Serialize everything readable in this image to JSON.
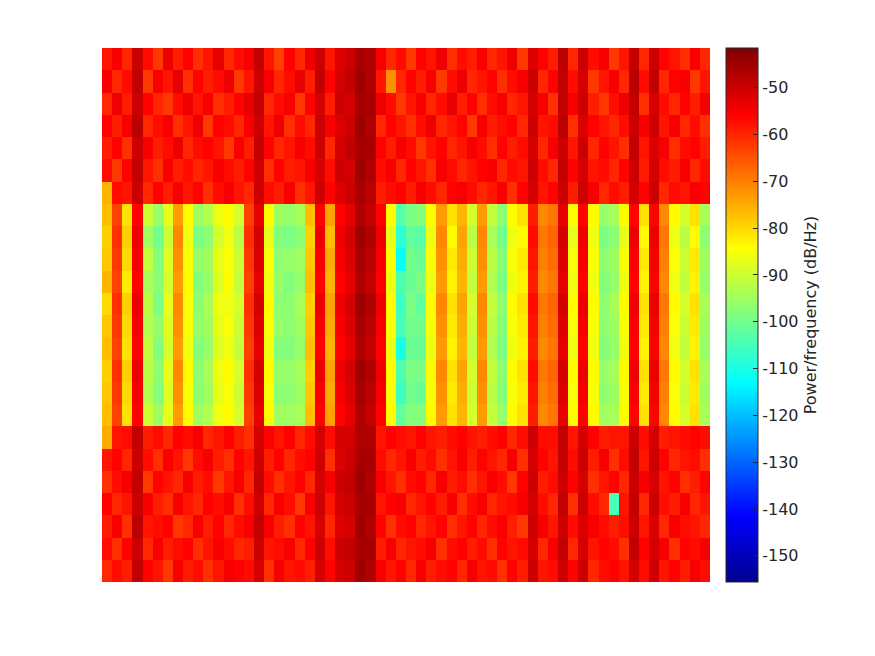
{
  "chart_data": {
    "type": "heatmap",
    "colorbar_label": "Power/frequency (dB/Hz)",
    "zlim": [
      -155.6,
      -41.5
    ],
    "zticks": [
      -150,
      -140,
      -130,
      -120,
      -110,
      -100,
      -90,
      -80,
      -70,
      -60,
      -50
    ],
    "tick_labels": false,
    "z": [
      [
        -58,
        -55,
        -60,
        -50,
        -57,
        -62,
        -54,
        -59,
        -56,
        -61,
        -58,
        -53,
        -60,
        -57,
        -55,
        -49,
        -58,
        -63,
        -56,
        -60,
        -54,
        -50,
        -58,
        -52,
        -50,
        -46,
        -47,
        -55,
        -60,
        -57,
        -62,
        -56,
        -58,
        -54,
        -61,
        -57,
        -59,
        -55,
        -60,
        -58,
        -54,
        -62,
        -52,
        -56,
        -59,
        -48,
        -60,
        -50,
        -57,
        -55,
        -62,
        -58,
        -49,
        -60,
        -50,
        -56,
        -58,
        -61,
        -55,
        -60
      ],
      [
        -55,
        -60,
        -57,
        -49,
        -62,
        -55,
        -58,
        -53,
        -61,
        -56,
        -59,
        -57,
        -54,
        -62,
        -58,
        -50,
        -55,
        -60,
        -57,
        -53,
        -59,
        -49,
        -56,
        -51,
        -49,
        -45,
        -47,
        -58,
        -72,
        -60,
        -56,
        -59,
        -55,
        -62,
        -57,
        -54,
        -60,
        -58,
        -56,
        -61,
        -57,
        -55,
        -50,
        -60,
        -56,
        -49,
        -57,
        -51,
        -62,
        -58,
        -55,
        -60,
        -48,
        -57,
        -49,
        -60,
        -56,
        -55,
        -62,
        -58
      ],
      [
        -60,
        -54,
        -59,
        -50,
        -56,
        -60,
        -62,
        -57,
        -54,
        -58,
        -55,
        -61,
        -59,
        -56,
        -53,
        -49,
        -60,
        -57,
        -55,
        -62,
        -56,
        -51,
        -59,
        -50,
        -51,
        -46,
        -46,
        -54,
        -57,
        -62,
        -58,
        -55,
        -60,
        -57,
        -53,
        -59,
        -56,
        -61,
        -57,
        -55,
        -60,
        -58,
        -51,
        -55,
        -61,
        -49,
        -55,
        -50,
        -59,
        -62,
        -57,
        -54,
        -49,
        -61,
        -51,
        -57,
        -60,
        -56,
        -59,
        -55
      ],
      [
        -56,
        -59,
        -55,
        -48,
        -60,
        -57,
        -55,
        -61,
        -58,
        -54,
        -62,
        -56,
        -57,
        -60,
        -55,
        -50,
        -58,
        -54,
        -61,
        -57,
        -60,
        -50,
        -55,
        -52,
        -50,
        -45,
        -47,
        -60,
        -56,
        -58,
        -61,
        -57,
        -54,
        -60,
        -58,
        -56,
        -62,
        -55,
        -59,
        -57,
        -56,
        -60,
        -50,
        -58,
        -57,
        -48,
        -61,
        -52,
        -56,
        -58,
        -60,
        -57,
        -50,
        -55,
        -50,
        -58,
        -55,
        -60,
        -57,
        -61
      ],
      [
        -59,
        -56,
        -61,
        -50,
        -55,
        -59,
        -57,
        -54,
        -60,
        -57,
        -56,
        -58,
        -62,
        -55,
        -59,
        -49,
        -56,
        -60,
        -58,
        -55,
        -57,
        -50,
        -60,
        -51,
        -49,
        -46,
        -46,
        -56,
        -59,
        -55,
        -57,
        -62,
        -58,
        -56,
        -60,
        -58,
        -55,
        -57,
        -61,
        -56,
        -59,
        -57,
        -51,
        -60,
        -55,
        -50,
        -58,
        -50,
        -60,
        -56,
        -58,
        -61,
        -49,
        -58,
        -52,
        -55,
        -61,
        -57,
        -56,
        -59
      ],
      [
        -57,
        -62,
        -56,
        -49,
        -58,
        -61,
        -55,
        -59,
        -57,
        -60,
        -58,
        -55,
        -57,
        -59,
        -56,
        -50,
        -61,
        -56,
        -59,
        -58,
        -55,
        -51,
        -57,
        -50,
        -51,
        -45,
        -47,
        -57,
        -55,
        -60,
        -56,
        -58,
        -61,
        -55,
        -57,
        -60,
        -58,
        -56,
        -55,
        -60,
        -57,
        -58,
        -50,
        -57,
        -60,
        -49,
        -56,
        -51,
        -58,
        -57,
        -60,
        -56,
        -50,
        -59,
        -51,
        -57,
        -59,
        -55,
        -60,
        -57
      ],
      [
        -76,
        -57,
        -58,
        -50,
        -60,
        -56,
        -59,
        -55,
        -58,
        -56,
        -61,
        -57,
        -55,
        -58,
        -60,
        -50,
        -57,
        -59,
        -55,
        -61,
        -58,
        -50,
        -56,
        -52,
        -50,
        -46,
        -48,
        -59,
        -57,
        -56,
        -59,
        -55,
        -57,
        -60,
        -56,
        -55,
        -57,
        -60,
        -58,
        -55,
        -61,
        -56,
        -51,
        -58,
        -56,
        -50,
        -59,
        -50,
        -55,
        -60,
        -57,
        -59,
        -51,
        -56,
        -50,
        -60,
        -57,
        -58,
        -55,
        -56
      ],
      [
        -77,
        -63,
        -81,
        -56,
        -90,
        -96,
        -87,
        -73,
        -84,
        -95,
        -93,
        -86,
        -84,
        -89,
        -63,
        -53,
        -84,
        -95,
        -96,
        -94,
        -77,
        -56,
        -74,
        -56,
        -53,
        -47,
        -49,
        -56,
        -84,
        -103,
        -99,
        -98,
        -84,
        -73,
        -81,
        -76,
        -89,
        -73,
        -91,
        -97,
        -84,
        -81,
        -59,
        -71,
        -69,
        -53,
        -84,
        -56,
        -84,
        -96,
        -94,
        -84,
        -56,
        -81,
        -56,
        -71,
        -84,
        -89,
        -81,
        -94
      ],
      [
        -79,
        -61,
        -79,
        -54,
        -95,
        -100,
        -90,
        -71,
        -86,
        -99,
        -97,
        -89,
        -86,
        -92,
        -61,
        -51,
        -87,
        -98,
        -99,
        -97,
        -79,
        -54,
        -77,
        -54,
        -51,
        -45,
        -47,
        -54,
        -87,
        -108,
        -102,
        -103,
        -86,
        -71,
        -84,
        -74,
        -92,
        -71,
        -94,
        -100,
        -86,
        -84,
        -57,
        -69,
        -67,
        -51,
        -87,
        -54,
        -86,
        -99,
        -97,
        -87,
        -54,
        -84,
        -54,
        -69,
        -86,
        -92,
        -84,
        -97
      ],
      [
        -78,
        -62,
        -80,
        -55,
        -91,
        -98,
        -88,
        -72,
        -85,
        -96,
        -95,
        -87,
        -85,
        -90,
        -62,
        -52,
        -85,
        -97,
        -96,
        -95,
        -78,
        -55,
        -75,
        -55,
        -52,
        -46,
        -48,
        -55,
        -85,
        -112,
        -100,
        -101,
        -85,
        -72,
        -82,
        -75,
        -90,
        -72,
        -92,
        -98,
        -85,
        -82,
        -58,
        -70,
        -68,
        -52,
        -85,
        -55,
        -85,
        -97,
        -95,
        -85,
        -55,
        -82,
        -55,
        -70,
        -85,
        -90,
        -82,
        -95
      ],
      [
        -76,
        -63,
        -82,
        -56,
        -94,
        -97,
        -89,
        -73,
        -84,
        -98,
        -96,
        -88,
        -84,
        -91,
        -63,
        -53,
        -86,
        -96,
        -98,
        -96,
        -77,
        -56,
        -76,
        -56,
        -53,
        -47,
        -49,
        -56,
        -86,
        -104,
        -101,
        -99,
        -86,
        -73,
        -83,
        -76,
        -91,
        -73,
        -93,
        -99,
        -86,
        -83,
        -59,
        -71,
        -69,
        -53,
        -86,
        -56,
        -86,
        -98,
        -96,
        -86,
        -56,
        -83,
        -56,
        -71,
        -86,
        -91,
        -83,
        -96
      ],
      [
        -80,
        -61,
        -79,
        -54,
        -92,
        -99,
        -87,
        -71,
        -85,
        -97,
        -94,
        -86,
        -86,
        -89,
        -61,
        -51,
        -84,
        -97,
        -97,
        -94,
        -79,
        -54,
        -74,
        -54,
        -51,
        -45,
        -47,
        -54,
        -84,
        -106,
        -99,
        -102,
        -84,
        -71,
        -81,
        -74,
        -89,
        -71,
        -91,
        -97,
        -84,
        -81,
        -57,
        -69,
        -67,
        -51,
        -84,
        -54,
        -84,
        -97,
        -94,
        -84,
        -54,
        -81,
        -54,
        -69,
        -84,
        -89,
        -81,
        -94
      ],
      [
        -78,
        -62,
        -80,
        -55,
        -93,
        -96,
        -88,
        -72,
        -85,
        -96,
        -95,
        -87,
        -85,
        -90,
        -62,
        -52,
        -85,
        -96,
        -97,
        -95,
        -78,
        -55,
        -75,
        -55,
        -52,
        -46,
        -48,
        -55,
        -85,
        -105,
        -100,
        -100,
        -85,
        -72,
        -82,
        -75,
        -90,
        -72,
        -92,
        -98,
        -85,
        -82,
        -58,
        -70,
        -68,
        -52,
        -85,
        -55,
        -85,
        -97,
        -95,
        -85,
        -55,
        -82,
        -55,
        -70,
        -85,
        -90,
        -82,
        -95
      ],
      [
        -77,
        -63,
        -81,
        -56,
        -91,
        -98,
        -89,
        -73,
        -86,
        -98,
        -96,
        -88,
        -86,
        -91,
        -63,
        -53,
        -86,
        -98,
        -98,
        -96,
        -77,
        -56,
        -76,
        -56,
        -53,
        -47,
        -49,
        -56,
        -86,
        -110,
        -101,
        -101,
        -86,
        -73,
        -83,
        -76,
        -91,
        -73,
        -93,
        -99,
        -86,
        -83,
        -59,
        -71,
        -69,
        -53,
        -86,
        -56,
        -86,
        -98,
        -96,
        -86,
        -56,
        -83,
        -56,
        -71,
        -86,
        -91,
        -83,
        -96
      ],
      [
        -79,
        -61,
        -79,
        -54,
        -92,
        -97,
        -87,
        -71,
        -84,
        -97,
        -94,
        -86,
        -84,
        -89,
        -61,
        -51,
        -84,
        -96,
        -96,
        -94,
        -79,
        -54,
        -74,
        -54,
        -51,
        -45,
        -47,
        -54,
        -84,
        -104,
        -99,
        -99,
        -84,
        -71,
        -81,
        -74,
        -89,
        -71,
        -91,
        -97,
        -84,
        -81,
        -57,
        -69,
        -67,
        -51,
        -84,
        -54,
        -84,
        -96,
        -94,
        -84,
        -54,
        -81,
        -54,
        -69,
        -84,
        -89,
        -81,
        -94
      ],
      [
        -78,
        -62,
        -80,
        -55,
        -93,
        -98,
        -88,
        -72,
        -85,
        -97,
        -95,
        -87,
        -85,
        -90,
        -62,
        -52,
        -85,
        -97,
        -97,
        -95,
        -78,
        -55,
        -75,
        -55,
        -52,
        -46,
        -48,
        -55,
        -85,
        -106,
        -100,
        -101,
        -85,
        -72,
        -82,
        -75,
        -90,
        -72,
        -92,
        -98,
        -85,
        -82,
        -58,
        -70,
        -68,
        -52,
        -85,
        -55,
        -85,
        -97,
        -95,
        -85,
        -55,
        -82,
        -55,
        -70,
        -85,
        -90,
        -82,
        -95
      ],
      [
        -77,
        -63,
        -81,
        -56,
        -90,
        -95,
        -87,
        -73,
        -84,
        -95,
        -93,
        -86,
        -84,
        -89,
        -63,
        -53,
        -84,
        -95,
        -95,
        -94,
        -77,
        -56,
        -74,
        -56,
        -53,
        -47,
        -49,
        -56,
        -84,
        -102,
        -98,
        -98,
        -84,
        -73,
        -81,
        -76,
        -89,
        -73,
        -91,
        -96,
        -84,
        -81,
        -59,
        -71,
        -69,
        -53,
        -84,
        -56,
        -84,
        -95,
        -94,
        -84,
        -56,
        -81,
        -56,
        -71,
        -84,
        -89,
        -81,
        -94
      ],
      [
        -75,
        -58,
        -57,
        -49,
        -59,
        -57,
        -60,
        -56,
        -57,
        -55,
        -60,
        -58,
        -56,
        -59,
        -61,
        -51,
        -56,
        -58,
        -56,
        -60,
        -57,
        -51,
        -57,
        -51,
        -51,
        -47,
        -47,
        -58,
        -56,
        -57,
        -58,
        -56,
        -58,
        -59,
        -57,
        -56,
        -58,
        -59,
        -57,
        -56,
        -60,
        -57,
        -50,
        -57,
        -57,
        -49,
        -58,
        -51,
        -56,
        -59,
        -58,
        -58,
        -50,
        -57,
        -51,
        -59,
        -58,
        -57,
        -56,
        -57
      ],
      [
        -58,
        -56,
        -60,
        -50,
        -57,
        -61,
        -55,
        -58,
        -62,
        -57,
        -55,
        -59,
        -61,
        -56,
        -58,
        -50,
        -59,
        -56,
        -60,
        -57,
        -56,
        -50,
        -61,
        -52,
        -50,
        -46,
        -46,
        -57,
        -60,
        -58,
        -55,
        -59,
        -57,
        -61,
        -58,
        -55,
        -59,
        -56,
        -58,
        -60,
        -55,
        -61,
        -51,
        -56,
        -58,
        -49,
        -57,
        -50,
        -59,
        -55,
        -61,
        -57,
        -49,
        -58,
        -50,
        -56,
        -60,
        -58,
        -57,
        -61
      ],
      [
        -61,
        -57,
        -55,
        -49,
        -62,
        -56,
        -58,
        -60,
        -55,
        -59,
        -57,
        -62,
        -58,
        -55,
        -60,
        -49,
        -57,
        -61,
        -58,
        -56,
        -60,
        -51,
        -55,
        -50,
        -49,
        -45,
        -47,
        -55,
        -58,
        -61,
        -57,
        -56,
        -60,
        -55,
        -59,
        -57,
        -61,
        -58,
        -55,
        -57,
        -62,
        -56,
        -50,
        -59,
        -57,
        -50,
        -56,
        -51,
        -61,
        -58,
        -56,
        -60,
        -50,
        -55,
        -51,
        -58,
        -56,
        -61,
        -59,
        -56
      ],
      [
        -56,
        -60,
        -58,
        -50,
        -55,
        -59,
        -61,
        -55,
        -58,
        -60,
        -56,
        -57,
        -55,
        -61,
        -57,
        -50,
        -60,
        -55,
        -57,
        -62,
        -55,
        -50,
        -58,
        -51,
        -50,
        -46,
        -46,
        -58,
        -56,
        -55,
        -60,
        -58,
        -56,
        -59,
        -55,
        -61,
        -57,
        -55,
        -60,
        -58,
        -57,
        -55,
        -51,
        -57,
        -60,
        -49,
        -61,
        -50,
        -57,
        -60,
        -105,
        -58,
        -49,
        -60,
        -50,
        -57,
        -59,
        -55,
        -60,
        -58
      ],
      [
        -59,
        -55,
        -61,
        -48,
        -58,
        -57,
        -56,
        -62,
        -60,
        -55,
        -59,
        -56,
        -60,
        -57,
        -55,
        -49,
        -55,
        -59,
        -61,
        -56,
        -58,
        -51,
        -60,
        -52,
        -51,
        -45,
        -47,
        -56,
        -61,
        -57,
        -56,
        -60,
        -58,
        -56,
        -61,
        -58,
        -56,
        -60,
        -57,
        -55,
        -59,
        -62,
        -50,
        -55,
        -58,
        -50,
        -57,
        -52,
        -55,
        -57,
        -59,
        -57,
        -50,
        -58,
        -52,
        -60,
        -55,
        -57,
        -58,
        -60
      ],
      [
        -57,
        -61,
        -56,
        -50,
        -60,
        -55,
        -59,
        -57,
        -56,
        -61,
        -58,
        -55,
        -57,
        -60,
        -59,
        -50,
        -58,
        -57,
        -55,
        -60,
        -56,
        -50,
        -57,
        -50,
        -49,
        -46,
        -46,
        -59,
        -55,
        -60,
        -58,
        -57,
        -55,
        -61,
        -57,
        -56,
        -59,
        -57,
        -61,
        -56,
        -58,
        -57,
        -51,
        -60,
        -55,
        -49,
        -60,
        -51,
        -58,
        -56,
        -57,
        -61,
        -49,
        -56,
        -51,
        -55,
        -61,
        -56,
        -57,
        -55
      ],
      [
        -60,
        -57,
        -59,
        -49,
        -56,
        -58,
        -62,
        -55,
        -59,
        -57,
        -61,
        -58,
        -55,
        -56,
        -57,
        -51,
        -61,
        -55,
        -58,
        -57,
        -59,
        -51,
        -56,
        -51,
        -50,
        -45,
        -47,
        -55,
        -58,
        -56,
        -60,
        -55,
        -59,
        -57,
        -56,
        -60,
        -55,
        -58,
        -57,
        -61,
        -56,
        -59,
        -50,
        -58,
        -57,
        -50,
        -56,
        -50,
        -60,
        -57,
        -56,
        -58,
        -51,
        -57,
        -50,
        -58,
        -56,
        -59,
        -55,
        -57
      ]
    ]
  }
}
